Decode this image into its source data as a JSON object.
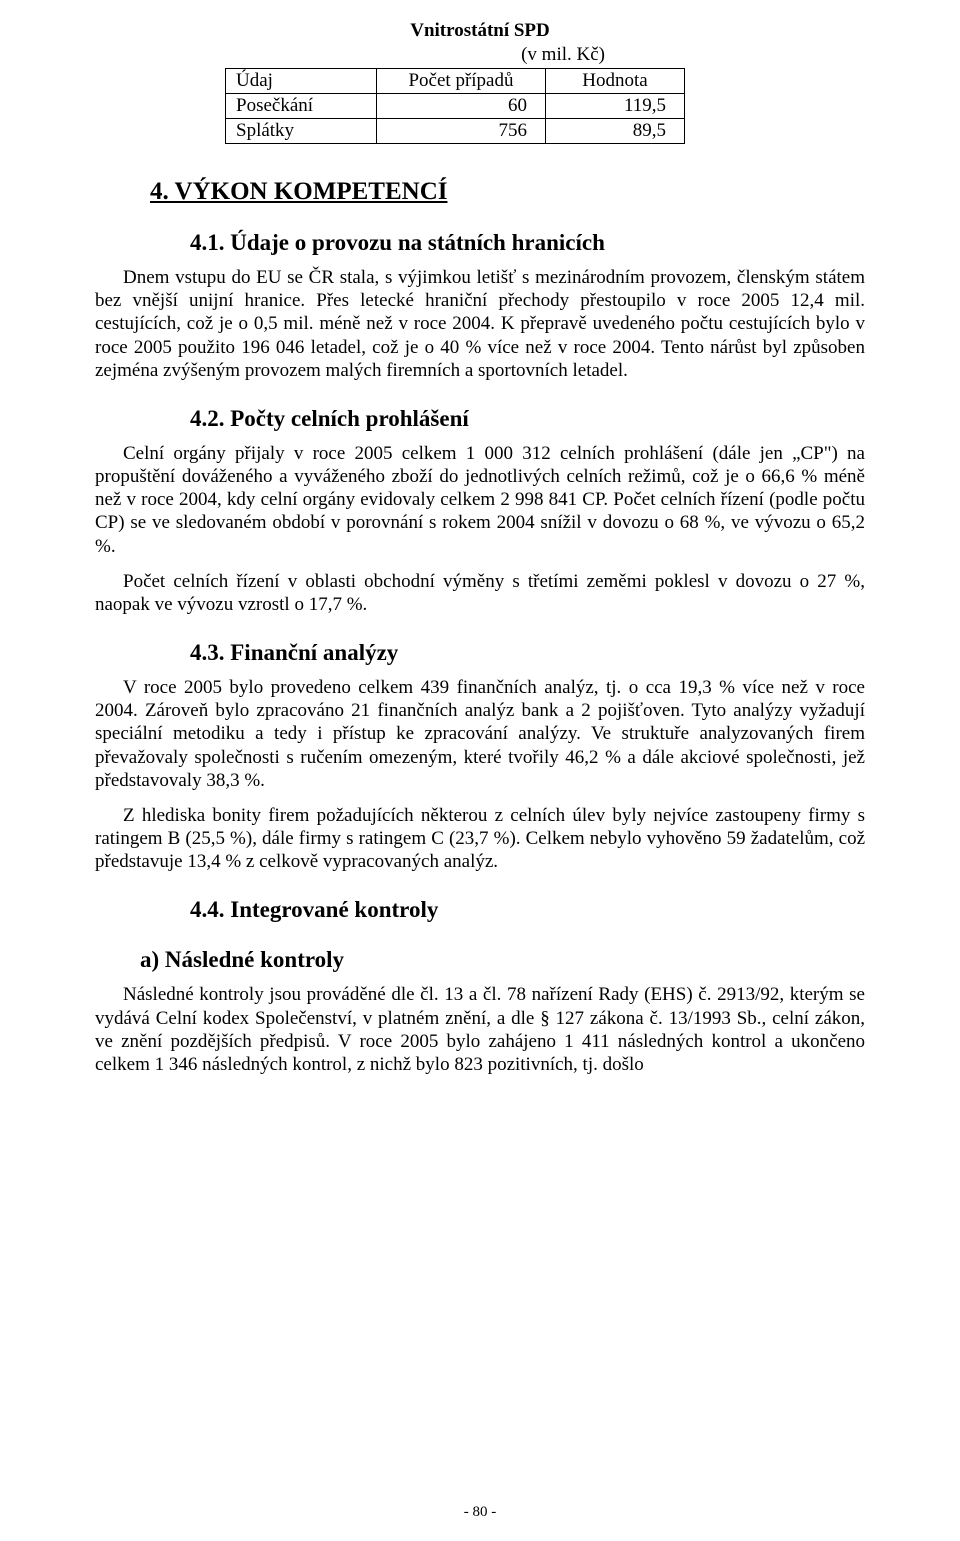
{
  "table": {
    "title": "Vnitrostátní SPD",
    "unit": "(v mil. Kč)",
    "headers": {
      "c1": "Údaj",
      "c2": "Počet případů",
      "c3": "Hodnota"
    },
    "rows": [
      {
        "c1": "Posečkání",
        "c2": "60",
        "c3": "119,5"
      },
      {
        "c1": "Splátky",
        "c2": "756",
        "c3": "89,5"
      }
    ]
  },
  "h4": "4. VÝKON KOMPETENCÍ",
  "s41": {
    "title": "4.1.  Údaje o provozu na státních hranicích",
    "p1": "Dnem vstupu do EU  se ČR stala, s výjimkou letišť s mezinárodním provozem, členským státem bez vnější unijní hranice. Přes letecké hraniční přechody přestoupilo v roce 2005 12,4 mil. cestujících, což je o 0,5 mil. méně než v roce 2004. K přepravě uvedeného počtu cestujících bylo v roce 2005 použito 196 046 letadel, což je o 40 %  více než v roce 2004. Tento nárůst byl způsoben zejména zvýšeným provozem malých firemních a sportovních letadel."
  },
  "s42": {
    "title": "4.2. Počty celních prohlášení",
    "p1": "Celní orgány přijaly v roce 2005 celkem 1 000 312 celních prohlášení (dále jen „CP\") na propuštění dováženého a vyváženého zboží do jednotlivých celních režimů, což je o 66,6 % méně než v roce 2004, kdy celní orgány evidovaly celkem 2 998 841 CP. Počet celních řízení (podle počtu CP) se ve sledovaném období v porovnání s rokem 2004 snížil v dovozu o 68 %, ve vývozu  o 65,2 %.",
    "p2": "Počet celních řízení v oblasti obchodní výměny s třetími zeměmi poklesl v dovozu o 27 %, naopak ve vývozu vzrostl o 17,7 %."
  },
  "s43": {
    "title": "4.3. Finanční analýzy",
    "p1": "V roce 2005 bylo provedeno celkem 439 finančních analýz, tj. o cca 19,3 % více než v roce 2004. Zároveň bylo zpracováno 21 finančních analýz bank a 2 pojišťoven. Tyto analýzy vyžadují speciální metodiku a tedy i přístup ke zpracování analýzy. Ve struktuře analyzovaných firem převažovaly společnosti s ručením omezeným, které tvořily 46,2 % a dále akciové společnosti, jež představovaly 38,3 %.",
    "p2": "Z hlediska bonity firem požadujících některou z celních úlev byly nejvíce zastoupeny firmy s ratingem B (25,5 %), dále firmy s ratingem C (23,7 %). Celkem nebylo vyhověno 59 žadatelům, což představuje 13,4 % z celkově vypracovaných analýz."
  },
  "s44": {
    "title": "4.4. Integrované kontroly",
    "a_title": "a)     Následné kontroly",
    "p1": "Následné kontroly jsou prováděné dle čl. 13 a čl. 78 nařízení Rady (EHS) č. 2913/92, kterým se vydává Celní kodex Společenství, v platném znění, a dle § 127 zákona č. 13/1993 Sb., celní zákon, ve znění pozdějších předpisů. V roce 2005 bylo zahájeno 1 411 následných kontrol a ukončeno celkem 1 346 následných kontrol, z nichž bylo 823 pozitivních, tj. došlo"
  },
  "page_number": "- 80 -"
}
